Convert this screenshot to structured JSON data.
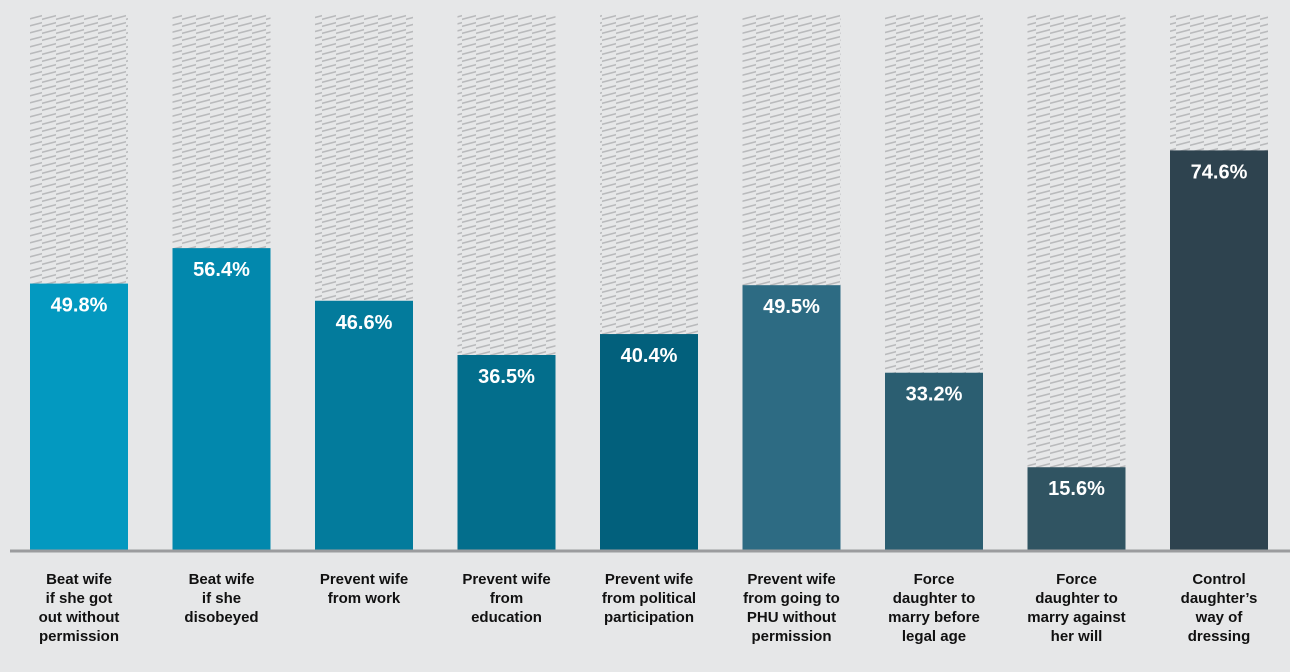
{
  "chart_data": {
    "type": "bar",
    "categories": [
      "Beat wife\nif she got\nout without\npermission",
      "Beat wife\nif she\ndisobeyed",
      "Prevent wife\nfrom work",
      "Prevent wife\nfrom\neducation",
      "Prevent wife\nfrom political\nparticipation",
      "Prevent wife\nfrom going to\nPHU without\npermission",
      "Force\ndaughter to\nmarry before\nlegal age",
      "Force\ndaughter to\nmarry against\nher will",
      "Control\ndaughter’s\nway of\ndressing"
    ],
    "values": [
      49.8,
      56.4,
      46.6,
      36.5,
      40.4,
      49.5,
      33.2,
      15.6,
      74.6
    ],
    "data_labels": [
      "49.8%",
      "56.4%",
      "46.6%",
      "36.5%",
      "40.4%",
      "49.5%",
      "33.2%",
      "15.6%",
      "74.6%"
    ],
    "ylim": [
      0,
      100
    ],
    "background_bars": "hatched, represent 100%",
    "grid": false,
    "colors": {
      "background": "#e6e7e8",
      "baseline": "#9b9c9e",
      "hatch": "#b9babc",
      "label_text": "#111111",
      "value_text": "#ffffff",
      "bars": [
        "#0399c0",
        "#0288ad",
        "#037b9c",
        "#036e8c",
        "#02607c",
        "#2d6b83",
        "#2b5e71",
        "#305462",
        "#2e434f"
      ]
    }
  }
}
